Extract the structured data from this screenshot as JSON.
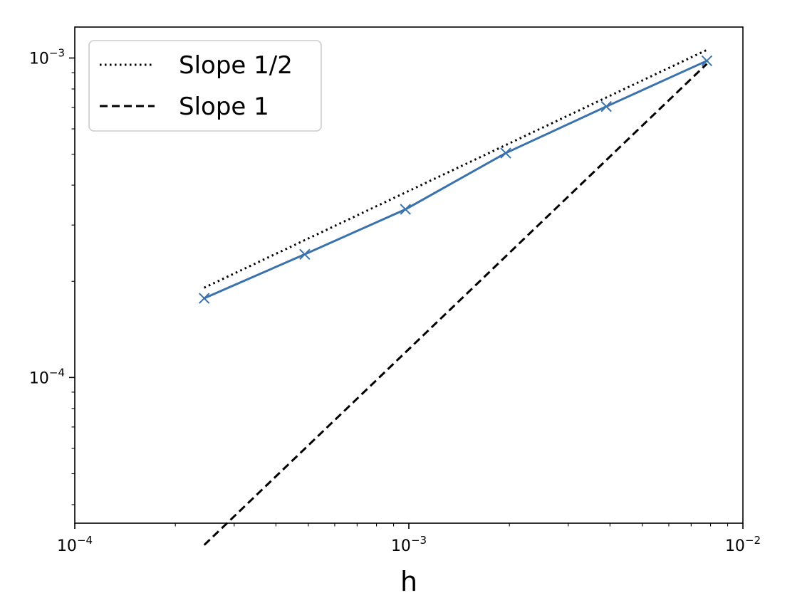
{
  "chart_data": {
    "type": "line",
    "title": "",
    "xlabel": "h",
    "ylabel": "",
    "xscale": "log",
    "yscale": "log",
    "xlim": [
      0.0001,
      0.01
    ],
    "ylim": [
      3.5e-05,
      0.00125
    ],
    "grid": false,
    "legend_position": "top-left",
    "x_ticks": [
      {
        "value": 0.0001,
        "base": "10",
        "exp": "−4"
      },
      {
        "value": 0.001,
        "base": "10",
        "exp": "−3"
      },
      {
        "value": 0.01,
        "base": "10",
        "exp": "−2"
      }
    ],
    "y_ticks": [
      {
        "value": 0.0001,
        "base": "10",
        "exp": "−4"
      },
      {
        "value": 0.001,
        "base": "10",
        "exp": "−3"
      }
    ],
    "series": [
      {
        "color": "#3a72ad",
        "style": "solid",
        "marker": "x",
        "x": [
          0.000244,
          0.000488,
          0.000977,
          0.00195,
          0.0039,
          0.0078
        ],
        "y": [
          0.000177,
          0.000243,
          0.000336,
          0.000504,
          0.000705,
          0.00098
        ]
      },
      {
        "name": "Slope 1/2",
        "color": "#000000",
        "style": "dotted",
        "marker": "none",
        "x": [
          0.000244,
          0.0078
        ],
        "y": [
          0.000191,
          0.00106
        ]
      },
      {
        "name": "Slope 1",
        "color": "#000000",
        "style": "dashed",
        "marker": "none",
        "x": [
          0.000244,
          0.0078
        ],
        "y": [
          2.99e-05,
          0.000959
        ]
      }
    ]
  }
}
